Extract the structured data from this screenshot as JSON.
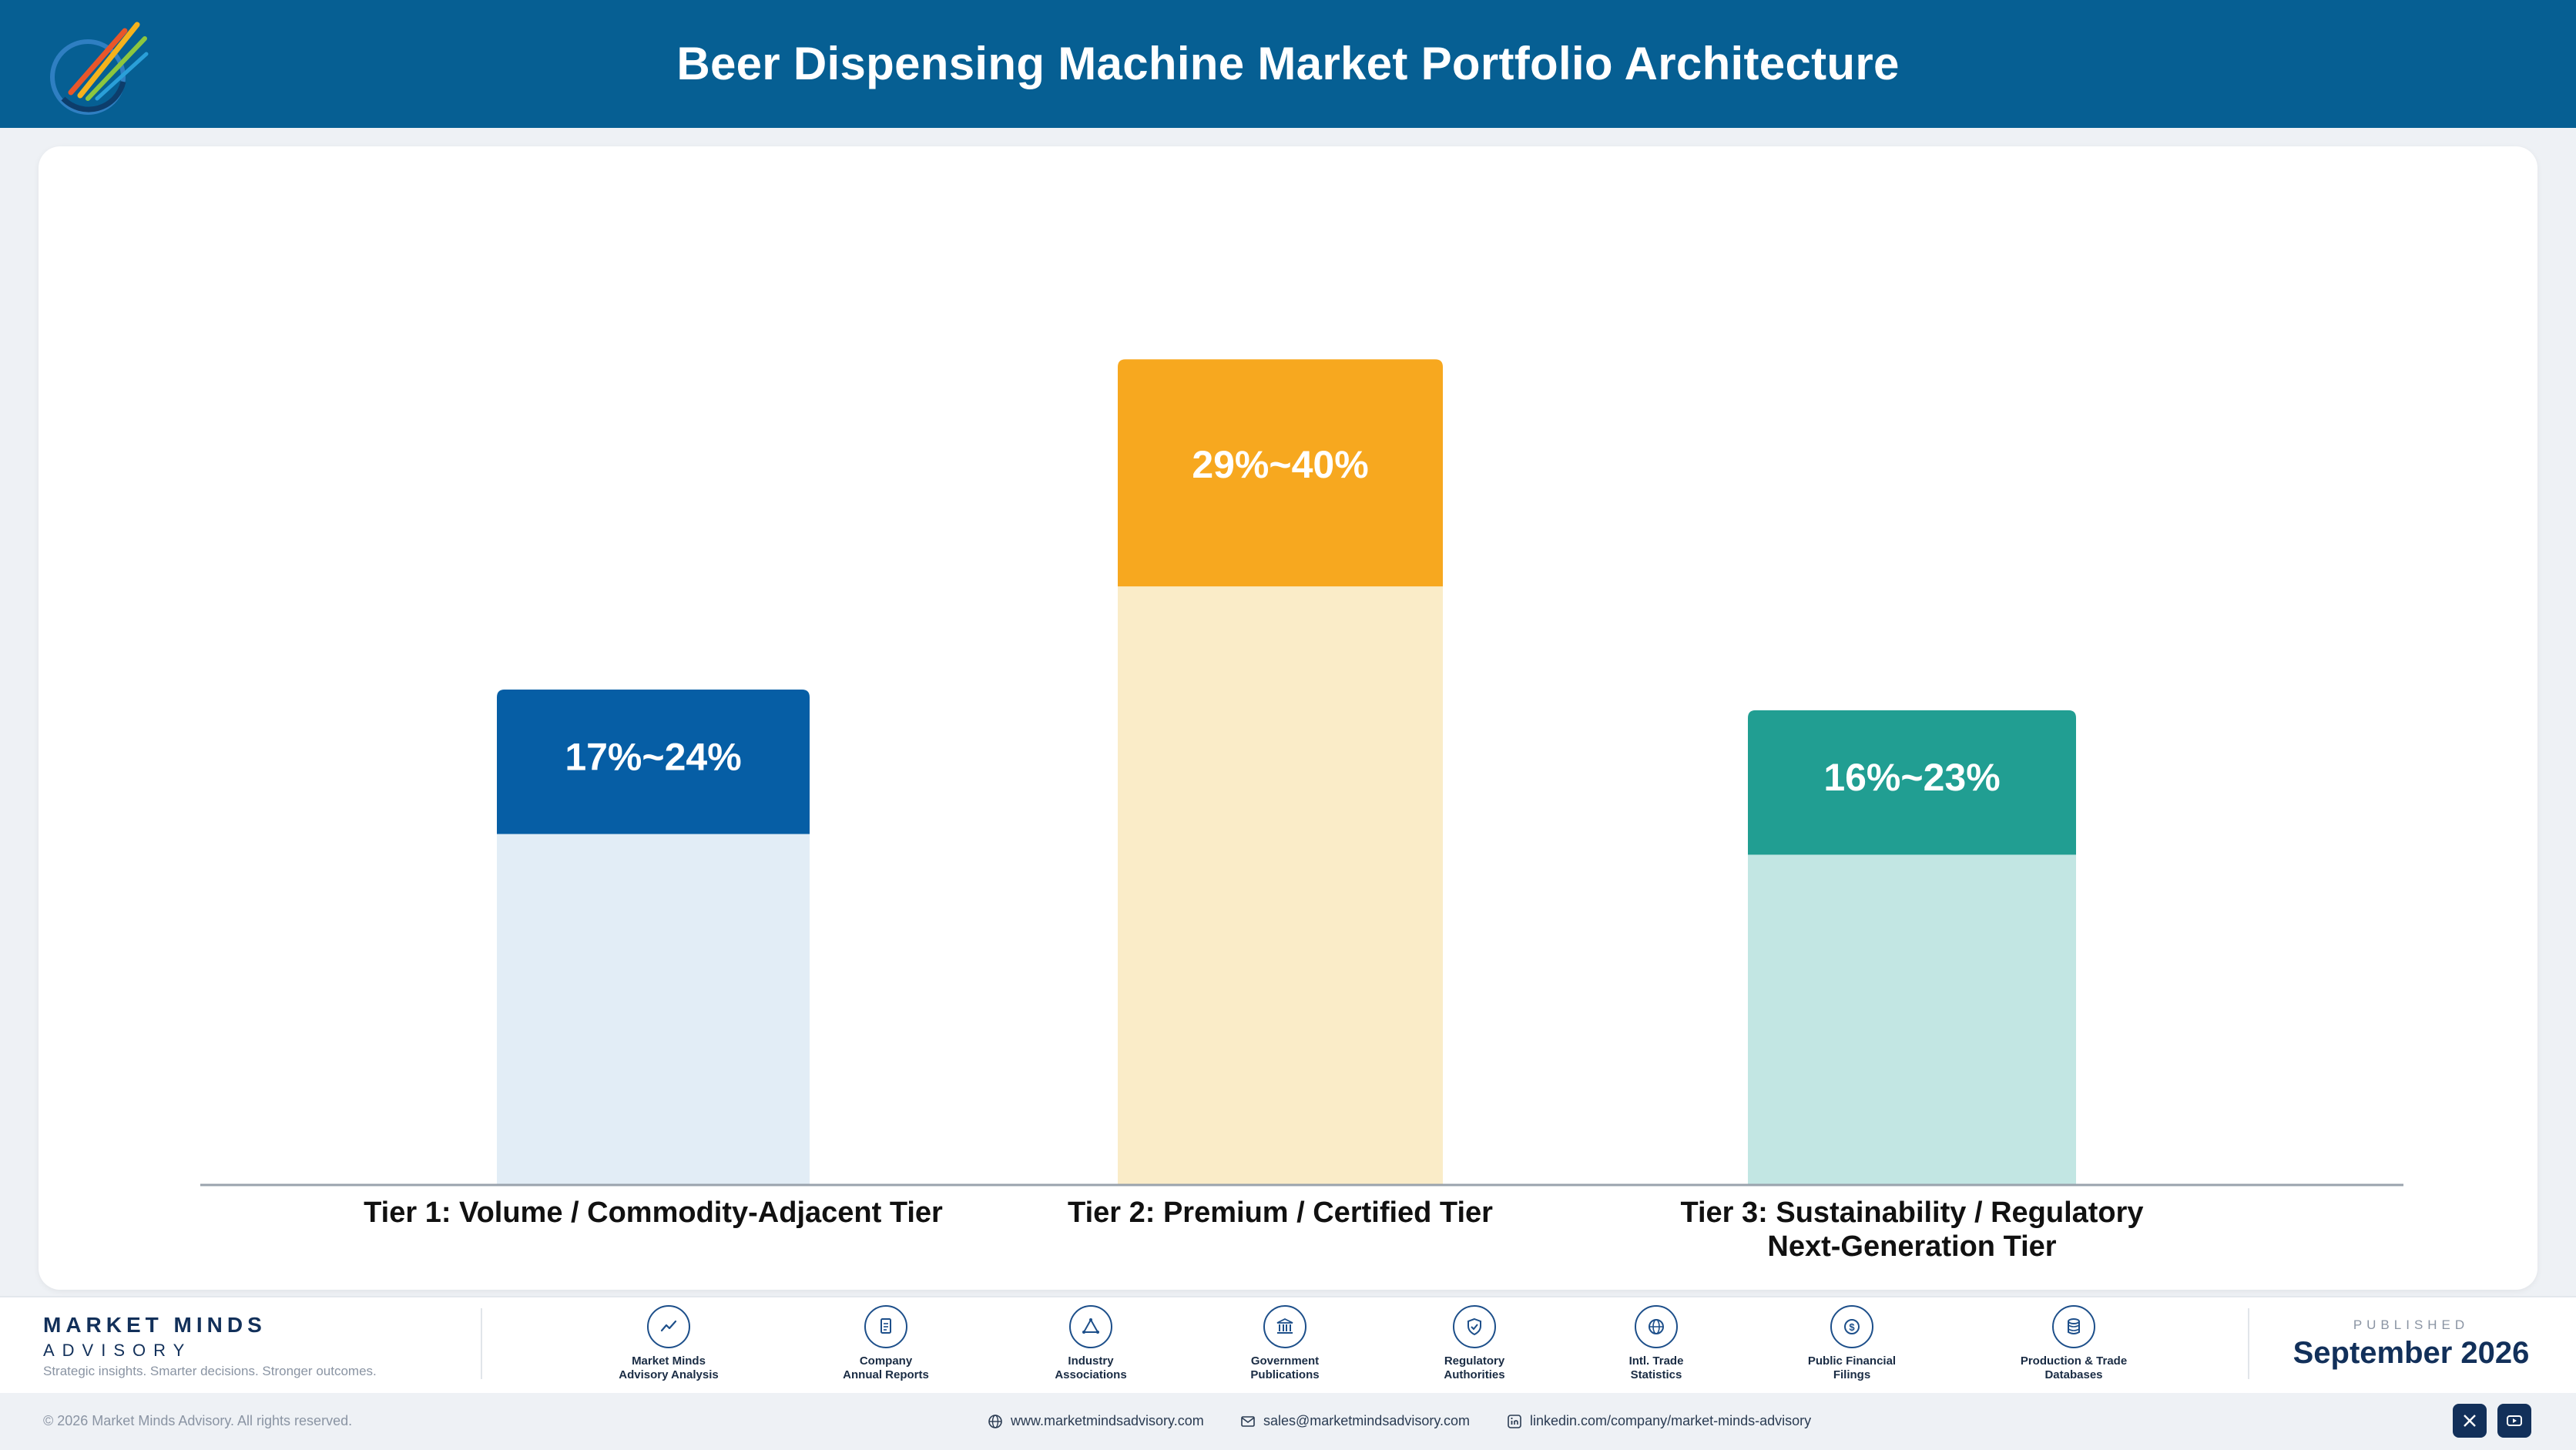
{
  "header": {
    "title": "Beer Dispensing Machine Market Portfolio Architecture"
  },
  "chart_data": {
    "type": "bar",
    "categories": [
      [
        "Tier 1: Volume / Commodity-Adjacent Tier"
      ],
      [
        "Tier 2: Premium / Certified Tier"
      ],
      [
        "Tier 3: Sustainability / Regulatory",
        "Next-Generation Tier"
      ]
    ],
    "range_labels": [
      "17%~24%",
      "29%~40%",
      "16%~23%"
    ],
    "ranges": [
      [
        17,
        24
      ],
      [
        29,
        40
      ],
      [
        16,
        23
      ]
    ],
    "colors": {
      "dark": [
        "#065ea5",
        "#f7a81f",
        "#219e92"
      ],
      "light": [
        "#e2edf6",
        "#faecc8",
        "#c2e6e3"
      ]
    },
    "grid": false
  },
  "footer": {
    "brand_name": "MARKET MINDS",
    "brand_sub": "ADVISORY",
    "brand_tagline": "Strategic insights. Smarter decisions. Stronger outcomes.",
    "sources": [
      {
        "icon": "trend-line-icon",
        "label": "Market Minds\nAdvisory Analysis"
      },
      {
        "icon": "document-icon",
        "label": "Company\nAnnual Reports"
      },
      {
        "icon": "network-icon",
        "label": "Industry\nAssociations"
      },
      {
        "icon": "government-building-icon",
        "label": "Government\nPublications"
      },
      {
        "icon": "shield-check-icon",
        "label": "Regulatory\nAuthorities"
      },
      {
        "icon": "globe-icon",
        "label": "Intl. Trade\nStatistics"
      },
      {
        "icon": "dollar-coin-icon",
        "label": "Public Financial\nFilings"
      },
      {
        "icon": "database-icon",
        "label": "Production & Trade\nDatabases"
      }
    ],
    "published_label": "PUBLISHED",
    "published_date": "September 2026"
  },
  "bottom": {
    "copyright": "© 2026 Market Minds Advisory. All rights reserved.",
    "website": "www.marketmindsadvisory.com",
    "email": "sales@marketmindsadvisory.com",
    "linkedin": "linkedin.com/company/market-minds-advisory"
  }
}
